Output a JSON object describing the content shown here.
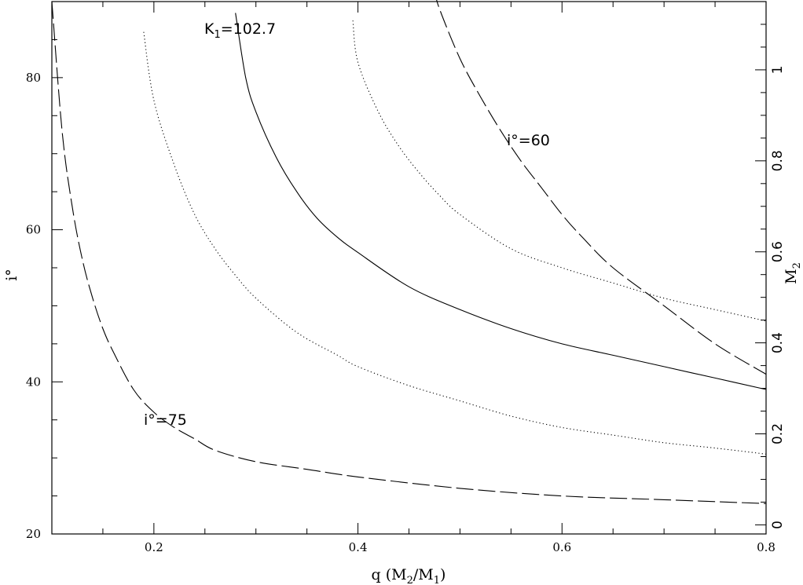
{
  "chart_data": {
    "type": "line",
    "title": "",
    "xlabel": "q (M2/M1)",
    "ylabel": "i°",
    "y2label": "M2",
    "xlim": [
      0.1,
      0.8
    ],
    "ylim": [
      20,
      90
    ],
    "y2lim": [
      -0.02,
      1.15
    ],
    "x_ticks": [
      "0.2",
      "0.4",
      "0.6",
      "0.8"
    ],
    "y_ticks": [
      "20",
      "40",
      "60",
      "80"
    ],
    "y2_ticks": [
      "0",
      "0.2",
      "0.4",
      "0.6",
      "0.8",
      "1"
    ],
    "grid": false,
    "series": [
      {
        "style": "solid",
        "axis": "left",
        "x": [
          0.28,
          0.29,
          0.3,
          0.32,
          0.34,
          0.36,
          0.38,
          0.4,
          0.45,
          0.5,
          0.55,
          0.6,
          0.65,
          0.7,
          0.75,
          0.8
        ],
        "y": [
          88.5,
          80,
          75.5,
          69.5,
          65,
          61.5,
          59,
          57,
          52.5,
          49.5,
          47,
          45,
          43.5,
          42,
          40.5,
          39
        ]
      },
      {
        "style": "dotted",
        "axis": "left",
        "x": [
          0.19,
          0.2,
          0.22,
          0.24,
          0.26,
          0.28,
          0.3,
          0.34,
          0.38,
          0.4,
          0.45,
          0.5,
          0.55,
          0.6,
          0.65,
          0.7,
          0.75,
          0.8
        ],
        "y": [
          86,
          77,
          68.5,
          62,
          57.5,
          54,
          51,
          46.5,
          43.5,
          42,
          39.5,
          37.5,
          35.5,
          34,
          33,
          32,
          31.3,
          30.5
        ]
      },
      {
        "style": "dotted",
        "axis": "left",
        "x": [
          0.395,
          0.4,
          0.42,
          0.44,
          0.46,
          0.48,
          0.5,
          0.55,
          0.6,
          0.65,
          0.7,
          0.75,
          0.8
        ],
        "y": [
          87.5,
          82,
          75.5,
          71,
          67.5,
          64.5,
          62,
          57.5,
          55,
          53,
          51,
          49.5,
          48
        ]
      },
      {
        "style": "dashed",
        "axis": "left",
        "x": [
          0.1,
          0.11,
          0.12,
          0.13,
          0.14,
          0.15,
          0.16,
          0.18,
          0.2,
          0.22,
          0.24,
          0.26,
          0.3,
          0.35,
          0.4,
          0.5,
          0.6,
          0.7,
          0.8
        ],
        "y": [
          90,
          73,
          63,
          56,
          51,
          47,
          44,
          39,
          36,
          34,
          32.5,
          31,
          29.5,
          28.5,
          27.5,
          26,
          25,
          24.5,
          24
        ]
      },
      {
        "style": "dashed",
        "axis": "left",
        "x": [
          0.475,
          0.48,
          0.5,
          0.52,
          0.54,
          0.56,
          0.58,
          0.6,
          0.62,
          0.65,
          0.7,
          0.75,
          0.8
        ],
        "y": [
          91.5,
          89,
          82.5,
          77.5,
          73,
          69,
          65.5,
          62,
          59,
          55,
          50,
          45,
          41
        ]
      }
    ],
    "annotations": [
      {
        "text": "K1=102.7",
        "x": 0.275,
        "y": 88.5
      },
      {
        "text": "i°=60",
        "x": 0.56,
        "y": 72.5
      },
      {
        "text": "i°=75",
        "x": 0.215,
        "y": 36
      }
    ]
  }
}
